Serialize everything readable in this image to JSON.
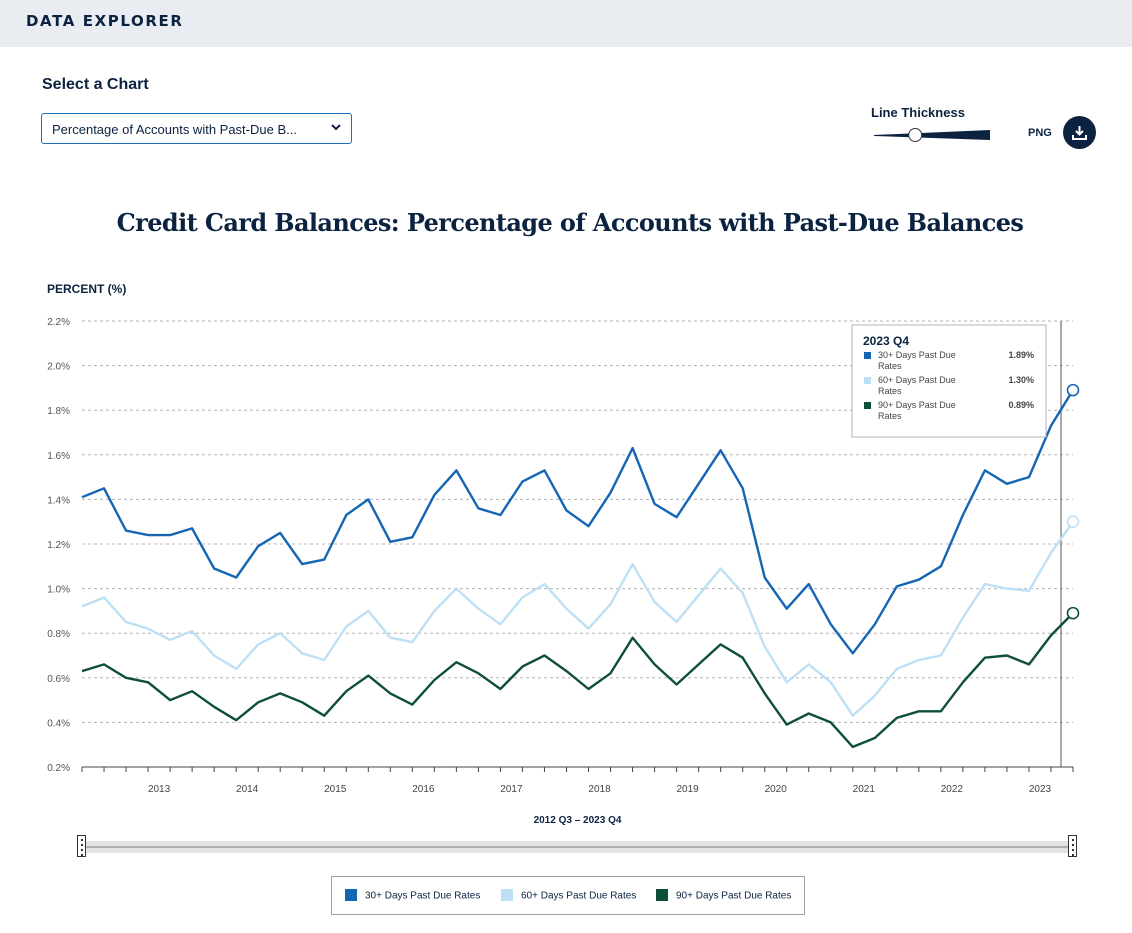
{
  "header": {
    "title": "DATA EXPLORER"
  },
  "controls": {
    "select_label": "Select a Chart",
    "select_value": "Percentage of Accounts with Past-Due B...",
    "thickness_label": "Line Thickness",
    "thickness_level": 0.35,
    "png_label": "PNG"
  },
  "colors": {
    "navy": "#0b2341",
    "series1": "#1565b5",
    "series2": "#bde0f5",
    "series3": "#0e4f3b"
  },
  "range": {
    "label": "2012 Q3 – 2023 Q4",
    "start": "2012 Q3",
    "end": "2023 Q4"
  },
  "chart_data": {
    "type": "line",
    "title": "Credit Card Balances: Percentage of Accounts with Past-Due Balances",
    "ylabel": "PERCENT (%)",
    "ylim": [
      0.2,
      2.2
    ],
    "yticks": [
      "2.2%",
      "2.0%",
      "1.8%",
      "1.6%",
      "1.4%",
      "1.2%",
      "1.0%",
      "0.8%",
      "0.6%",
      "0.4%",
      "0.2%"
    ],
    "xticks": [
      "2013",
      "2014",
      "2015",
      "2016",
      "2017",
      "2018",
      "2019",
      "2020",
      "2021",
      "2022",
      "2023"
    ],
    "grid": true,
    "legend_position": "bottom",
    "x": [
      "2012 Q3",
      "2012 Q4",
      "2013 Q1",
      "2013 Q2",
      "2013 Q3",
      "2013 Q4",
      "2014 Q1",
      "2014 Q2",
      "2014 Q3",
      "2014 Q4",
      "2015 Q1",
      "2015 Q2",
      "2015 Q3",
      "2015 Q4",
      "2016 Q1",
      "2016 Q2",
      "2016 Q3",
      "2016 Q4",
      "2017 Q1",
      "2017 Q2",
      "2017 Q3",
      "2017 Q4",
      "2018 Q1",
      "2018 Q2",
      "2018 Q3",
      "2018 Q4",
      "2019 Q1",
      "2019 Q2",
      "2019 Q3",
      "2019 Q4",
      "2020 Q1",
      "2020 Q2",
      "2020 Q3",
      "2020 Q4",
      "2021 Q1",
      "2021 Q2",
      "2021 Q3",
      "2021 Q4",
      "2022 Q1",
      "2022 Q2",
      "2022 Q3",
      "2022 Q4",
      "2023 Q1",
      "2023 Q2",
      "2023 Q3",
      "2023 Q4"
    ],
    "series": [
      {
        "name": "30+ Days Past Due Rates",
        "color": "#1565b5",
        "values": [
          1.41,
          1.45,
          1.26,
          1.24,
          1.24,
          1.27,
          1.09,
          1.05,
          1.19,
          1.25,
          1.11,
          1.13,
          1.33,
          1.4,
          1.21,
          1.23,
          1.42,
          1.53,
          1.36,
          1.33,
          1.48,
          1.53,
          1.35,
          1.28,
          1.43,
          1.63,
          1.38,
          1.32,
          1.47,
          1.62,
          1.45,
          1.05,
          0.91,
          1.02,
          0.84,
          0.71,
          0.84,
          1.01,
          1.04,
          1.1,
          1.33,
          1.53,
          1.47,
          1.5,
          1.73,
          1.89
        ]
      },
      {
        "name": "60+ Days Past Due Rates",
        "color": "#bde0f5",
        "values": [
          0.92,
          0.96,
          0.85,
          0.82,
          0.77,
          0.81,
          0.7,
          0.64,
          0.75,
          0.8,
          0.71,
          0.68,
          0.83,
          0.9,
          0.78,
          0.76,
          0.9,
          1.0,
          0.91,
          0.84,
          0.96,
          1.02,
          0.91,
          0.82,
          0.93,
          1.11,
          0.94,
          0.85,
          0.97,
          1.09,
          0.98,
          0.74,
          0.58,
          0.66,
          0.58,
          0.43,
          0.52,
          0.64,
          0.68,
          0.7,
          0.87,
          1.02,
          1.0,
          0.99,
          1.16,
          1.3
        ]
      },
      {
        "name": "90+ Days Past Due Rates",
        "color": "#0e4f3b",
        "values": [
          0.63,
          0.66,
          0.6,
          0.58,
          0.5,
          0.54,
          0.47,
          0.41,
          0.49,
          0.53,
          0.49,
          0.43,
          0.54,
          0.61,
          0.53,
          0.48,
          0.59,
          0.67,
          0.62,
          0.55,
          0.65,
          0.7,
          0.63,
          0.55,
          0.62,
          0.78,
          0.66,
          0.57,
          0.66,
          0.75,
          0.69,
          0.53,
          0.39,
          0.44,
          0.4,
          0.29,
          0.33,
          0.42,
          0.45,
          0.45,
          0.58,
          0.69,
          0.7,
          0.66,
          0.79,
          0.89
        ]
      }
    ]
  },
  "tooltip": {
    "period": "2023 Q4",
    "rows": [
      {
        "label_line1": "30+ Days Past Due",
        "label_line2": "Rates",
        "value": "1.89%",
        "color": "#1565b5"
      },
      {
        "label_line1": "60+ Days Past Due",
        "label_line2": "Rates",
        "value": "1.30%",
        "color": "#bde0f5"
      },
      {
        "label_line1": "90+ Days Past Due",
        "label_line2": "Rates",
        "value": "0.89%",
        "color": "#0e4f3b"
      }
    ]
  }
}
